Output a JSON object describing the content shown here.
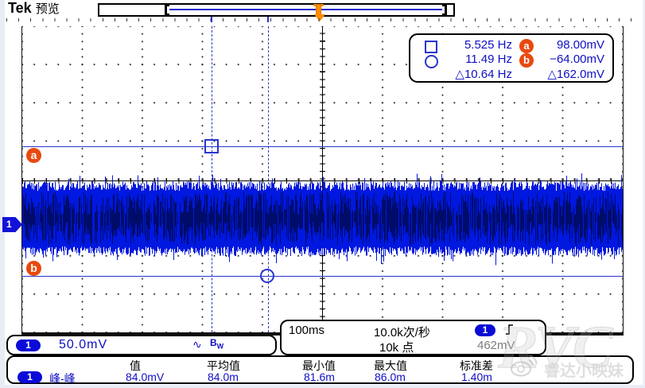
{
  "header": {
    "brand": "Tek",
    "mode": "预览"
  },
  "cursors": {
    "a_label": "a",
    "b_label": "b",
    "rows": [
      {
        "marker": "square",
        "freq": "5.525 Hz",
        "badge": "a",
        "value": "98.00mV"
      },
      {
        "marker": "circle",
        "freq": "11.49 Hz",
        "badge": "b",
        "value": "−64.00mV"
      }
    ],
    "delta_freq": "△10.64 Hz",
    "delta_value": "△162.0mV"
  },
  "channel": {
    "number": "1",
    "scale": "50.0mV",
    "coupling": "∿",
    "bandwidth": "B",
    "bandwidth_sub": "W"
  },
  "horizontal": {
    "timebase": "100ms",
    "sample_rate": "10.0k次/秒",
    "record_length": "10k 点"
  },
  "trigger": {
    "channel": "1",
    "level": "462mV"
  },
  "measurements": {
    "headers": [
      "值",
      "平均值",
      "最小值",
      "最大值",
      "标准差"
    ],
    "rows": [
      {
        "channel": "1",
        "name": "峰-峰",
        "values": [
          "84.0mV",
          "84.0m",
          "81.6m",
          "86.0m",
          "1.40m"
        ]
      }
    ]
  },
  "watermark": {
    "text": "RVC",
    "subtext": "睿达小映妹"
  },
  "colors": {
    "accent_blue": "#0f0fc4",
    "trace_blue": "#0018e0",
    "trace_dark": "#000a55",
    "badge_orange": "#e8490f",
    "trigger_orange": "#ff8c00",
    "channel_badge_blue": "#0b0bd8"
  }
}
